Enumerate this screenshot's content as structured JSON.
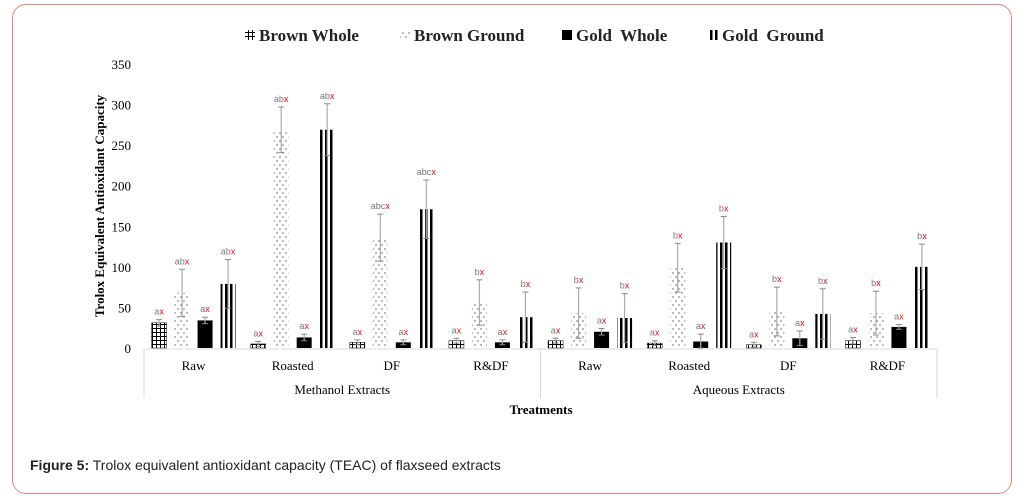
{
  "chart_data": {
    "type": "bar",
    "title": "",
    "xlabel": "Treatments",
    "ylabel": "Trolox Equivalent Antioxidant Capacity",
    "ylim": [
      0,
      350
    ],
    "yticks": [
      0,
      50,
      100,
      150,
      200,
      250,
      300,
      350
    ],
    "grid": false,
    "legend_position": "top",
    "groups": [
      {
        "name": "Methanol Extracts",
        "categories": [
          "Raw",
          "Roasted",
          "DF",
          "R&DF"
        ]
      },
      {
        "name": "Aqueous Extracts",
        "categories": [
          "Raw",
          "Roasted",
          "DF",
          "R&DF"
        ]
      }
    ],
    "categories": [
      "Raw",
      "Roasted",
      "DF",
      "R&DF",
      "Raw",
      "Roasted",
      "DF",
      "R&DF"
    ],
    "series": [
      {
        "name": "Brown Whole",
        "pattern": "grid",
        "values": [
          31,
          5,
          7,
          9,
          9,
          6,
          4,
          9
        ],
        "errors": [
          4,
          3,
          3,
          3,
          3,
          3,
          3,
          4
        ],
        "labels": [
          [
            "a",
            "x"
          ],
          [
            "a",
            "x"
          ],
          [
            "a",
            "x"
          ],
          [
            "a",
            "x"
          ],
          [
            "a",
            "x"
          ],
          [
            "a",
            "x"
          ],
          [
            "a",
            "x"
          ],
          [
            "a",
            "x"
          ]
        ]
      },
      {
        "name": "Brown Ground",
        "pattern": "dots",
        "values": [
          68,
          269,
          136,
          56,
          43,
          99,
          45,
          43
        ],
        "errors": [
          29,
          28,
          29,
          28,
          31,
          30,
          30,
          27
        ],
        "labels": [
          [
            "ab",
            "x"
          ],
          [
            "ab",
            "x"
          ],
          [
            "abc",
            "x"
          ],
          [
            "b",
            "x"
          ],
          [
            "b",
            "x"
          ],
          [
            "b",
            "x"
          ],
          [
            "b",
            "x"
          ],
          [
            "b",
            "x"
          ]
        ]
      },
      {
        "name": "Gold  Whole",
        "pattern": "solid",
        "values": [
          34,
          13,
          7,
          7,
          20,
          8,
          12,
          26
        ],
        "errors": [
          4,
          4,
          3,
          3,
          4,
          9,
          9,
          3
        ],
        "labels": [
          [
            "a",
            "x"
          ],
          [
            "a",
            "x"
          ],
          [
            "a",
            "x"
          ],
          [
            "a",
            "x"
          ],
          [
            "a",
            "x"
          ],
          [
            "a",
            "x"
          ],
          [
            "a",
            "x"
          ],
          [
            "a",
            "x"
          ]
        ]
      },
      {
        "name": "Gold  Ground",
        "pattern": "vstripes",
        "values": [
          79,
          269,
          171,
          38,
          37,
          130,
          42,
          100
        ],
        "errors": [
          30,
          32,
          36,
          31,
          30,
          32,
          31,
          28
        ],
        "labels": [
          [
            "ab",
            "x"
          ],
          [
            "ab",
            "x"
          ],
          [
            "abc",
            "x"
          ],
          [
            "b",
            "x"
          ],
          [
            "b",
            "x"
          ],
          [
            "b",
            "x"
          ],
          [
            "b",
            "x"
          ],
          [
            "b",
            "x"
          ]
        ]
      }
    ],
    "colors": {
      "letter_main": "#777777",
      "letter_accent": "#ff0000",
      "bar": "#000000",
      "error_bar": "#aaaaaa"
    }
  },
  "caption": {
    "label": "Figure 5:",
    "text": " Trolox equivalent antioxidant capacity (TEAC) of flaxseed extracts"
  },
  "frame_color": "#f08080"
}
